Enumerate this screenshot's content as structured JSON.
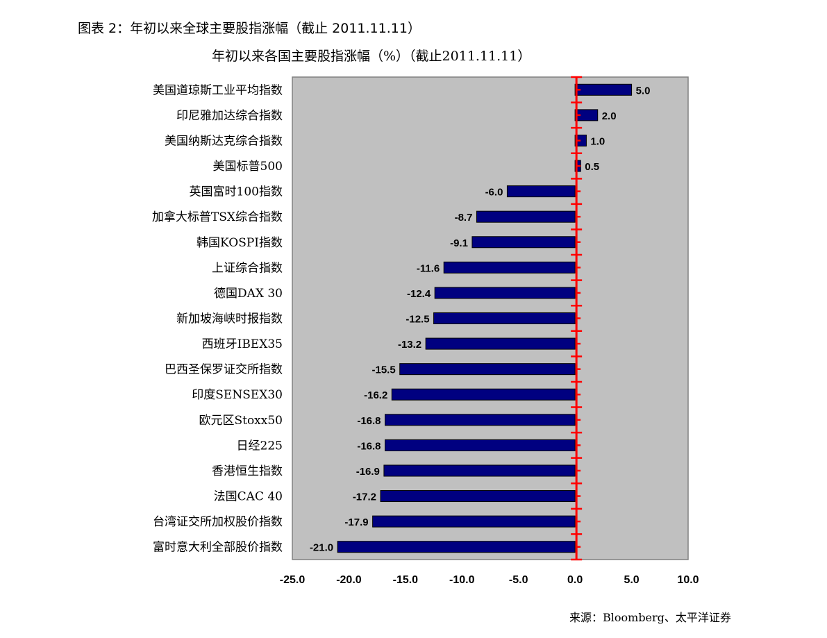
{
  "figure_title": "图表 2：年初以来全球主要股指涨幅（截止 2011.11.11）",
  "source": "来源：Bloomberg、太平洋证券",
  "chart_data": {
    "type": "bar",
    "orientation": "horizontal",
    "title": "年初以来各国主要股指涨幅（%）（截止2011.11.11）",
    "categories": [
      "美国道琼斯工业平均指数",
      "印尼雅加达综合指数",
      "美国纳斯达克综合指数",
      "美国标普500",
      "英国富时100指数",
      "加拿大标普TSX综合指数",
      "韩国KOSPI指数",
      "上证综合指数",
      "德国DAX 30",
      "新加坡海峡时报指数",
      "西班牙IBEX35",
      "巴西圣保罗证交所指数",
      "印度SENSEX30",
      "欧元区Stoxx50",
      "日经225",
      "香港恒生指数",
      "法国CAC 40",
      "台湾证交所加权股价指数",
      "富时意大利全部股价指数"
    ],
    "values": [
      5.0,
      2.0,
      1.0,
      0.5,
      -6.0,
      -8.7,
      -9.1,
      -11.6,
      -12.4,
      -12.5,
      -13.2,
      -15.5,
      -16.2,
      -16.8,
      -16.8,
      -16.9,
      -17.2,
      -17.9,
      -21.0
    ],
    "xlim": [
      -25,
      10
    ],
    "xticks": [
      "-25.0",
      "-20.0",
      "-15.0",
      "-10.0",
      "-5.0",
      "0.0",
      "5.0",
      "10.0"
    ],
    "xtick_values": [
      -25,
      -20,
      -15,
      -10,
      -5,
      0,
      5,
      10
    ],
    "grid": false,
    "colors": {
      "bar": "#000080",
      "plot_bg": "#c0c0c0",
      "axis": "#ff0000"
    }
  }
}
